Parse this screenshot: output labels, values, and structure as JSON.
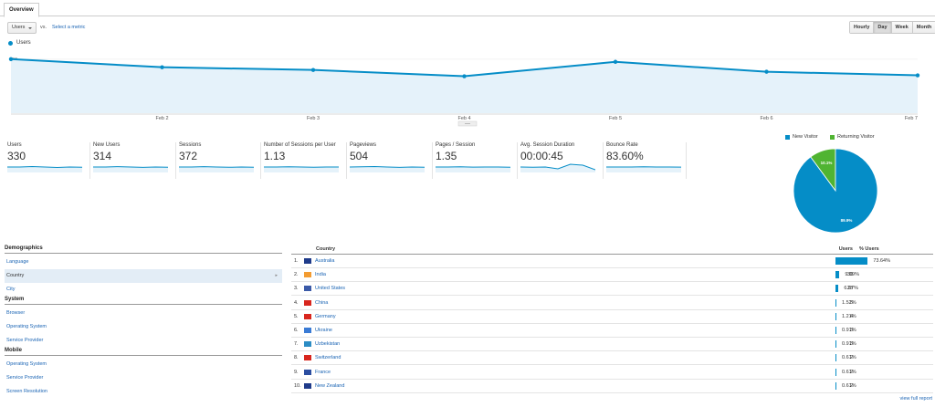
{
  "tab": {
    "label": "Overview"
  },
  "controls": {
    "metric_select": "Users",
    "vs": "vs.",
    "select_metric": "Select a metric",
    "granularity": [
      "Hourly",
      "Day",
      "Week",
      "Month"
    ],
    "active_granularity": "Day"
  },
  "chart_data": {
    "type": "area",
    "series": [
      {
        "name": "Users",
        "values": [
          60,
          51,
          48,
          41,
          57,
          46,
          42
        ]
      }
    ],
    "x": [
      "",
      "Feb 2",
      "Feb 3",
      "Feb 4",
      "Feb 5",
      "Feb 6",
      "Feb 7"
    ],
    "yticks": [
      "20",
      "40",
      "60"
    ],
    "ylim": [
      0,
      75
    ],
    "color": "#058dc7",
    "fill": "#e5f2fa",
    "grid": true
  },
  "scorecards": [
    {
      "label": "Users",
      "value": "330",
      "spark": [
        5,
        5,
        5.5,
        5,
        4.5,
        5,
        4.8
      ]
    },
    {
      "label": "New Users",
      "value": "314",
      "spark": [
        5,
        5,
        5.4,
        5,
        4.6,
        5,
        4.8
      ]
    },
    {
      "label": "Sessions",
      "value": "372",
      "spark": [
        5,
        5,
        5.4,
        5,
        4.7,
        5,
        4.8
      ]
    },
    {
      "label": "Number of Sessions per User",
      "value": "1.13",
      "spark": [
        5,
        5,
        5.2,
        5,
        4.8,
        5,
        5
      ]
    },
    {
      "label": "Pageviews",
      "value": "504",
      "spark": [
        5,
        5.2,
        5.5,
        5,
        4.6,
        5,
        4.7
      ]
    },
    {
      "label": "Pages / Session",
      "value": "1.35",
      "spark": [
        5,
        5,
        5.2,
        4.9,
        5,
        5,
        4.8
      ]
    },
    {
      "label": "Avg. Session Duration",
      "value": "00:00:45",
      "spark": [
        5,
        4.8,
        5,
        3,
        8,
        7,
        2
      ]
    },
    {
      "label": "Bounce Rate",
      "value": "83.60%",
      "spark": [
        5,
        5,
        5,
        5.2,
        5,
        5,
        4.9
      ]
    }
  ],
  "pie": {
    "legend": [
      {
        "label": "New Visitor",
        "color": "#058dc7"
      },
      {
        "label": "Returning Visitor",
        "color": "#50b432"
      }
    ],
    "slices": [
      {
        "label": "89.9%",
        "value": 89.9,
        "color": "#058dc7"
      },
      {
        "label": "10.1%",
        "value": 10.1,
        "color": "#50b432"
      }
    ]
  },
  "sidebar": {
    "sections": [
      {
        "title": "Demographics",
        "items": [
          "Language",
          "Country",
          "City"
        ]
      },
      {
        "title": "System",
        "items": [
          "Browser",
          "Operating System",
          "Service Provider"
        ]
      },
      {
        "title": "Mobile",
        "items": [
          "Operating System",
          "Service Provider",
          "Screen Resolution"
        ]
      }
    ],
    "selected": "Country"
  },
  "country_table": {
    "headers": {
      "country": "Country",
      "users": "Users",
      "pct": "% Users"
    },
    "rows": [
      {
        "rank": "1.",
        "name": "Australia",
        "users": "243",
        "pct": "73.64%",
        "frac": 0.7364,
        "flag": "au"
      },
      {
        "rank": "2.",
        "name": "India",
        "users": "30",
        "pct": "9.09%",
        "frac": 0.0909,
        "flag": "in"
      },
      {
        "rank": "3.",
        "name": "United States",
        "users": "23",
        "pct": "6.97%",
        "frac": 0.0697,
        "flag": "us"
      },
      {
        "rank": "4.",
        "name": "China",
        "users": "5",
        "pct": "1.52%",
        "frac": 0.0152,
        "flag": "cn"
      },
      {
        "rank": "5.",
        "name": "Germany",
        "users": "4",
        "pct": "1.21%",
        "frac": 0.0121,
        "flag": "de"
      },
      {
        "rank": "6.",
        "name": "Ukraine",
        "users": "3",
        "pct": "0.91%",
        "frac": 0.0091,
        "flag": "ua"
      },
      {
        "rank": "7.",
        "name": "Uzbekistan",
        "users": "3",
        "pct": "0.91%",
        "frac": 0.0091,
        "flag": "uz"
      },
      {
        "rank": "8.",
        "name": "Switzerland",
        "users": "2",
        "pct": "0.61%",
        "frac": 0.0061,
        "flag": "ch"
      },
      {
        "rank": "9.",
        "name": "France",
        "users": "2",
        "pct": "0.61%",
        "frac": 0.0061,
        "flag": "fr"
      },
      {
        "rank": "10.",
        "name": "New Zealand",
        "users": "2",
        "pct": "0.61%",
        "frac": 0.0061,
        "flag": "nz"
      }
    ],
    "full_report": "view full report"
  }
}
